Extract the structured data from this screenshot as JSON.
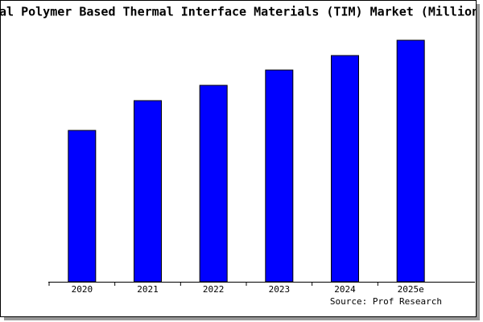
{
  "chart_data": {
    "type": "bar",
    "title": "al Polymer Based Thermal Interface Materials (TIM) Market (Million",
    "categories": [
      "2020",
      "2021",
      "2022",
      "2023",
      "2024",
      "2025e"
    ],
    "values": [
      188,
      225,
      244,
      263,
      281,
      300
    ],
    "color": "#0000ff",
    "source": "Source: Prof Research"
  }
}
